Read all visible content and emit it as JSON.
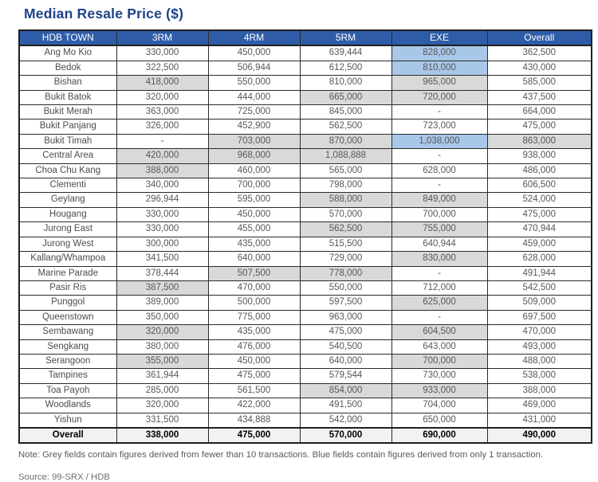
{
  "title": "Median Resale Price ($)",
  "note": "Note: Grey fields contain figures derived from fewer than 10 transactions. Blue fields contain figures derived from only 1 transaction.",
  "source": "Source: 99-SRX / HDB",
  "colors": {
    "title": "#1E4289",
    "header_bg": "#2E5CA8",
    "grey_cell": "#D9D9D9",
    "blue_cell": "#A9C7E8",
    "footer_bg": "#F2F2F2"
  },
  "legend": {
    "grey_meaning": "fewer than 10 transactions",
    "blue_meaning": "only 1 transaction"
  },
  "table": {
    "columns": [
      "HDB TOWN",
      "3RM",
      "4RM",
      "5RM",
      "EXE",
      "Overall"
    ],
    "rows": [
      {
        "town": "Ang Mo Kio",
        "values": [
          "330,000",
          "450,000",
          "639,444",
          "828,000",
          "362,500"
        ],
        "styles": [
          "w",
          "w",
          "w",
          "b",
          "w"
        ]
      },
      {
        "town": "Bedok",
        "values": [
          "322,500",
          "506,944",
          "612,500",
          "810,000",
          "430,000"
        ],
        "styles": [
          "w",
          "w",
          "w",
          "b",
          "w"
        ]
      },
      {
        "town": "Bishan",
        "values": [
          "418,000",
          "550,000",
          "810,000",
          "965,000",
          "585,000"
        ],
        "styles": [
          "g",
          "w",
          "w",
          "g",
          "w"
        ]
      },
      {
        "town": "Bukit Batok",
        "values": [
          "320,000",
          "444,000",
          "665,000",
          "720,000",
          "437,500"
        ],
        "styles": [
          "w",
          "w",
          "g",
          "g",
          "w"
        ]
      },
      {
        "town": "Bukit Merah",
        "values": [
          "363,000",
          "725,000",
          "845,000",
          "-",
          "664,000"
        ],
        "styles": [
          "w",
          "w",
          "w",
          "w",
          "w"
        ]
      },
      {
        "town": "Bukit Panjang",
        "values": [
          "326,000",
          "452,900",
          "562,500",
          "723,000",
          "475,000"
        ],
        "styles": [
          "w",
          "w",
          "w",
          "w",
          "w"
        ]
      },
      {
        "town": "Bukit Timah",
        "values": [
          "-",
          "703,000",
          "870,000",
          "1,038,000",
          "863,000"
        ],
        "styles": [
          "w",
          "g",
          "g",
          "b",
          "g"
        ]
      },
      {
        "town": "Central Area",
        "values": [
          "420,000",
          "968,000",
          "1,088,888",
          "-",
          "938,000"
        ],
        "styles": [
          "g",
          "g",
          "g",
          "w",
          "w"
        ]
      },
      {
        "town": "Choa Chu Kang",
        "values": [
          "388,000",
          "460,000",
          "565,000",
          "628,000",
          "486,000"
        ],
        "styles": [
          "g",
          "w",
          "w",
          "w",
          "w"
        ]
      },
      {
        "town": "Clementi",
        "values": [
          "340,000",
          "700,000",
          "798,000",
          "-",
          "606,500"
        ],
        "styles": [
          "w",
          "w",
          "w",
          "w",
          "w"
        ]
      },
      {
        "town": "Geylang",
        "values": [
          "296,944",
          "595,000",
          "588,000",
          "849,000",
          "524,000"
        ],
        "styles": [
          "w",
          "w",
          "g",
          "g",
          "w"
        ]
      },
      {
        "town": "Hougang",
        "values": [
          "330,000",
          "450,000",
          "570,000",
          "700,000",
          "475,000"
        ],
        "styles": [
          "w",
          "w",
          "w",
          "w",
          "w"
        ]
      },
      {
        "town": "Jurong East",
        "values": [
          "330,000",
          "455,000",
          "562,500",
          "755,000",
          "470,944"
        ],
        "styles": [
          "w",
          "w",
          "g",
          "g",
          "w"
        ]
      },
      {
        "town": "Jurong West",
        "values": [
          "300,000",
          "435,000",
          "515,500",
          "640,944",
          "459,000"
        ],
        "styles": [
          "w",
          "w",
          "w",
          "w",
          "w"
        ]
      },
      {
        "town": "Kallang/Whampoa",
        "values": [
          "341,500",
          "640,000",
          "729,000",
          "830,000",
          "628,000"
        ],
        "styles": [
          "w",
          "w",
          "w",
          "g",
          "w"
        ]
      },
      {
        "town": "Marine Parade",
        "values": [
          "378,444",
          "507,500",
          "778,000",
          "-",
          "491,944"
        ],
        "styles": [
          "w",
          "g",
          "g",
          "w",
          "w"
        ]
      },
      {
        "town": "Pasir Ris",
        "values": [
          "387,500",
          "470,000",
          "550,000",
          "712,000",
          "542,500"
        ],
        "styles": [
          "g",
          "w",
          "w",
          "w",
          "w"
        ]
      },
      {
        "town": "Punggol",
        "values": [
          "389,000",
          "500,000",
          "597,500",
          "625,000",
          "509,000"
        ],
        "styles": [
          "w",
          "w",
          "w",
          "g",
          "w"
        ]
      },
      {
        "town": "Queenstown",
        "values": [
          "350,000",
          "775,000",
          "963,000",
          "-",
          "697,500"
        ],
        "styles": [
          "w",
          "w",
          "w",
          "w",
          "w"
        ]
      },
      {
        "town": "Sembawang",
        "values": [
          "320,000",
          "435,000",
          "475,000",
          "604,500",
          "470,000"
        ],
        "styles": [
          "g",
          "w",
          "w",
          "g",
          "w"
        ]
      },
      {
        "town": "Sengkang",
        "values": [
          "380,000",
          "476,000",
          "540,500",
          "643,000",
          "493,000"
        ],
        "styles": [
          "w",
          "w",
          "w",
          "w",
          "w"
        ]
      },
      {
        "town": "Serangoon",
        "values": [
          "355,000",
          "450,000",
          "640,000",
          "700,000",
          "488,000"
        ],
        "styles": [
          "g",
          "w",
          "w",
          "g",
          "w"
        ]
      },
      {
        "town": "Tampines",
        "values": [
          "361,944",
          "475,000",
          "579,544",
          "730,000",
          "538,000"
        ],
        "styles": [
          "w",
          "w",
          "w",
          "w",
          "w"
        ]
      },
      {
        "town": "Toa Payoh",
        "values": [
          "285,000",
          "561,500",
          "854,000",
          "933,000",
          "388,000"
        ],
        "styles": [
          "w",
          "w",
          "g",
          "g",
          "w"
        ]
      },
      {
        "town": "Woodlands",
        "values": [
          "320,000",
          "422,000",
          "491,500",
          "704,000",
          "469,000"
        ],
        "styles": [
          "w",
          "w",
          "w",
          "w",
          "w"
        ]
      },
      {
        "town": "Yishun",
        "values": [
          "331,500",
          "434,888",
          "542,000",
          "650,000",
          "431,000"
        ],
        "styles": [
          "w",
          "w",
          "w",
          "w",
          "w"
        ]
      }
    ],
    "overall_row": {
      "town": "Overall",
      "values": [
        "338,000",
        "475,000",
        "570,000",
        "690,000",
        "490,000"
      ]
    }
  }
}
